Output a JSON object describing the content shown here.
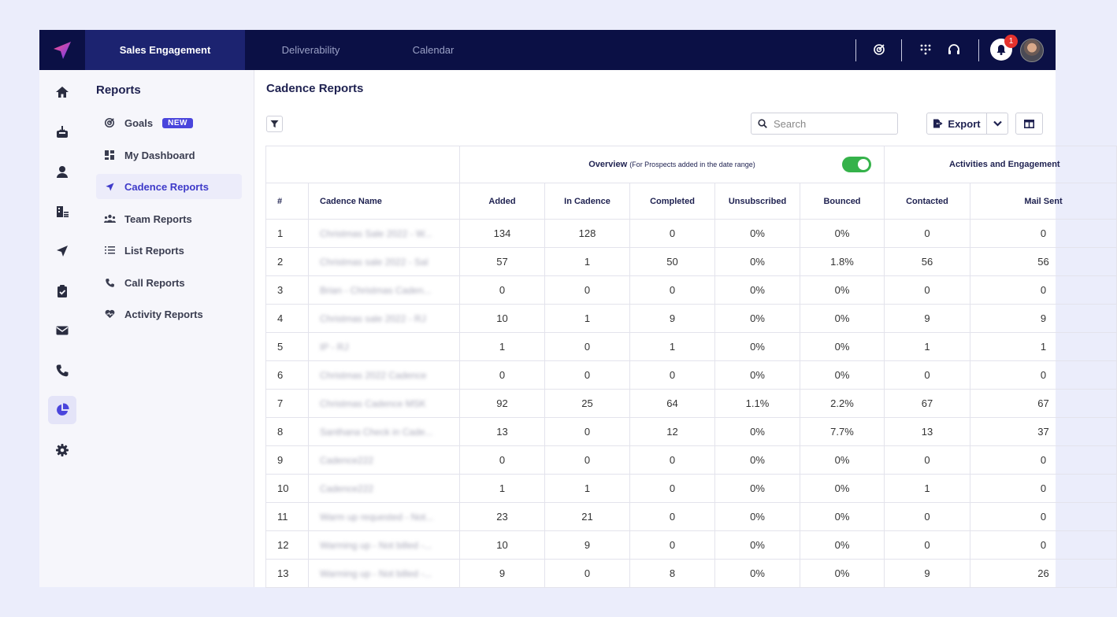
{
  "topnav": {
    "tabs": [
      {
        "label": "Sales Engagement",
        "active": true
      },
      {
        "label": "Deliverability",
        "active": false
      },
      {
        "label": "Calendar",
        "active": false
      }
    ],
    "notification_count": "1",
    "icons": [
      "goals-icon",
      "grid-icon",
      "headset-icon",
      "bell-icon",
      "avatar"
    ]
  },
  "rail": {
    "items": [
      "home-icon",
      "inbox-icon",
      "user-icon",
      "accounts-icon",
      "send-icon",
      "clipboard-icon",
      "mail-icon",
      "phone-icon",
      "reports-icon",
      "settings-icon"
    ],
    "active": "reports-icon"
  },
  "sidebar": {
    "title": "Reports",
    "items": [
      {
        "label": "Goals",
        "badge": "NEW",
        "icon": "target-icon"
      },
      {
        "label": "My Dashboard",
        "icon": "dashboard-icon"
      },
      {
        "label": "Cadence Reports",
        "icon": "send-icon",
        "active": true
      },
      {
        "label": "Team Reports",
        "icon": "team-icon"
      },
      {
        "label": "List Reports",
        "icon": "list-icon"
      },
      {
        "label": "Call Reports",
        "icon": "phone-icon"
      },
      {
        "label": "Activity Reports",
        "icon": "heart-pulse-icon"
      }
    ]
  },
  "main": {
    "title": "Cadence Reports",
    "search_placeholder": "Search",
    "export_label": "Export",
    "group_headers": {
      "overview": "Overview",
      "overview_sub": "(For Prospects added in the date range)",
      "activities": "Activities and Engagement"
    },
    "overview_toggle_on": true,
    "columns": [
      "#",
      "Cadence Name",
      "Added",
      "In Cadence",
      "Completed",
      "Unsubscribed",
      "Bounced",
      "Contacted",
      "Mail Sent"
    ],
    "rows": [
      {
        "num": "1",
        "name": "Christmas Sale 2022 - W...",
        "added": "134",
        "in_cadence": "128",
        "completed": "0",
        "unsubscribed": "0%",
        "bounced": "0%",
        "contacted": "0",
        "mail_sent": "0"
      },
      {
        "num": "2",
        "name": "Christmas sale 2022 - Sal",
        "added": "57",
        "in_cadence": "1",
        "completed": "50",
        "unsubscribed": "0%",
        "bounced": "1.8%",
        "contacted": "56",
        "mail_sent": "56"
      },
      {
        "num": "3",
        "name": "Brian - Christmas Caden...",
        "added": "0",
        "in_cadence": "0",
        "completed": "0",
        "unsubscribed": "0%",
        "bounced": "0%",
        "contacted": "0",
        "mail_sent": "0"
      },
      {
        "num": "4",
        "name": "Christmas sale 2022 - RJ",
        "added": "10",
        "in_cadence": "1",
        "completed": "9",
        "unsubscribed": "0%",
        "bounced": "0%",
        "contacted": "9",
        "mail_sent": "9"
      },
      {
        "num": "5",
        "name": "IP - RJ",
        "added": "1",
        "in_cadence": "0",
        "completed": "1",
        "unsubscribed": "0%",
        "bounced": "0%",
        "contacted": "1",
        "mail_sent": "1"
      },
      {
        "num": "6",
        "name": "Christmas 2022 Cadence",
        "added": "0",
        "in_cadence": "0",
        "completed": "0",
        "unsubscribed": "0%",
        "bounced": "0%",
        "contacted": "0",
        "mail_sent": "0"
      },
      {
        "num": "7",
        "name": "Christmas Cadence MSK",
        "added": "92",
        "in_cadence": "25",
        "completed": "64",
        "unsubscribed": "1.1%",
        "bounced": "2.2%",
        "contacted": "67",
        "mail_sent": "67"
      },
      {
        "num": "8",
        "name": "Santhana Check in Cade...",
        "added": "13",
        "in_cadence": "0",
        "completed": "12",
        "unsubscribed": "0%",
        "bounced": "7.7%",
        "contacted": "13",
        "mail_sent": "37"
      },
      {
        "num": "9",
        "name": "Cadence222",
        "added": "0",
        "in_cadence": "0",
        "completed": "0",
        "unsubscribed": "0%",
        "bounced": "0%",
        "contacted": "0",
        "mail_sent": "0"
      },
      {
        "num": "10",
        "name": "Cadence222",
        "added": "1",
        "in_cadence": "1",
        "completed": "0",
        "unsubscribed": "0%",
        "bounced": "0%",
        "contacted": "1",
        "mail_sent": "0"
      },
      {
        "num": "11",
        "name": "Warm up requested - Not...",
        "added": "23",
        "in_cadence": "21",
        "completed": "0",
        "unsubscribed": "0%",
        "bounced": "0%",
        "contacted": "0",
        "mail_sent": "0"
      },
      {
        "num": "12",
        "name": "Warming up - Not billed -...",
        "added": "10",
        "in_cadence": "9",
        "completed": "0",
        "unsubscribed": "0%",
        "bounced": "0%",
        "contacted": "0",
        "mail_sent": "0"
      },
      {
        "num": "13",
        "name": "Warming up - Not billed -...",
        "added": "9",
        "in_cadence": "0",
        "completed": "8",
        "unsubscribed": "0%",
        "bounced": "0%",
        "contacted": "9",
        "mail_sent": "26"
      }
    ]
  },
  "colors": {
    "topbar": "#0b1045",
    "active_tab": "#1c2370",
    "accent": "#3e3ac9",
    "toggle_on": "#35b24a",
    "badge_new": "#4a45dc",
    "notification": "#e5322d"
  }
}
